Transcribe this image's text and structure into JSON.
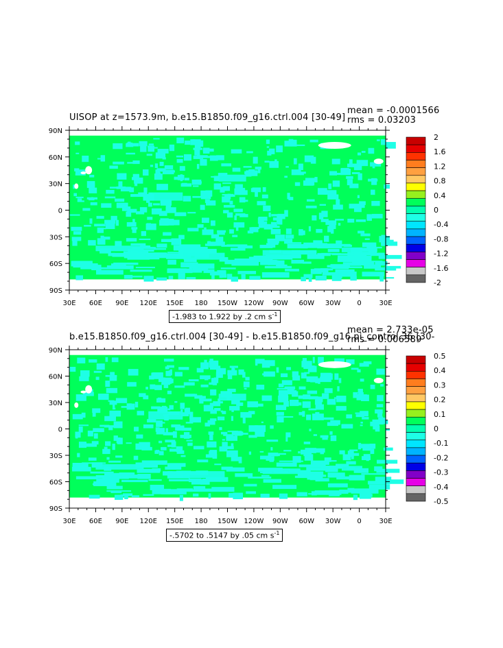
{
  "panels": [
    {
      "title": "UISOP at z=1573.9m, b.e15.B1850.f09_g16.ctrl.004 [30-49]",
      "mean": "mean = -0.0001566",
      "rms": "rms = 0.03203",
      "range_text": "-1.983 to 1.922 by .2 cm s",
      "range_unit_exp": "-1",
      "colorbar_labels": [
        "2",
        "1.6",
        "1.2",
        "0.8",
        "0.4",
        "0",
        "-0.4",
        "-0.8",
        "-1.2",
        "-1.6",
        "-2"
      ]
    },
    {
      "title": "b.e15.B1850.f09_g16.ctrl.004 [30-49] - b.e15.B1850.f09_g16.pi_control.36 [30-",
      "mean": "mean = 2.733e-05",
      "rms": "rms = 0.006589",
      "range_text": "-.5702 to .5147 by .05 cm s",
      "range_unit_exp": "-1",
      "colorbar_labels": [
        "0.5",
        "0.4",
        "0.3",
        "0.2",
        "0.1",
        "0",
        "-0.1",
        "-0.2",
        "-0.3",
        "-0.4",
        "-0.5"
      ]
    }
  ],
  "colorbar_colors": [
    "#c80000",
    "#e60000",
    "#ff3200",
    "#ff7d1e",
    "#ffa040",
    "#ffc864",
    "#ffff00",
    "#96f01e",
    "#00ff5a",
    "#00ffaf",
    "#1effe6",
    "#00e6ff",
    "#00b4ff",
    "#0064ff",
    "#0000e6",
    "#8200c8",
    "#e600e6",
    "#c8c8c8",
    "#646464"
  ],
  "chart_data": {
    "type": "heatmap",
    "x_tick_labels": [
      "30E",
      "60E",
      "90E",
      "120E",
      "150E",
      "180",
      "150W",
      "120W",
      "90W",
      "60W",
      "30W",
      "0",
      "30E"
    ],
    "y_tick_labels": [
      "90N",
      "60N",
      "30N",
      "0",
      "30S",
      "60S",
      "90S"
    ],
    "xlim": [
      30,
      390
    ],
    "ylim": [
      -90,
      90
    ],
    "dominant_field_color": "#00ff5a",
    "secondary_field_color": "#1effe6",
    "missing_color": "#ffffff"
  }
}
